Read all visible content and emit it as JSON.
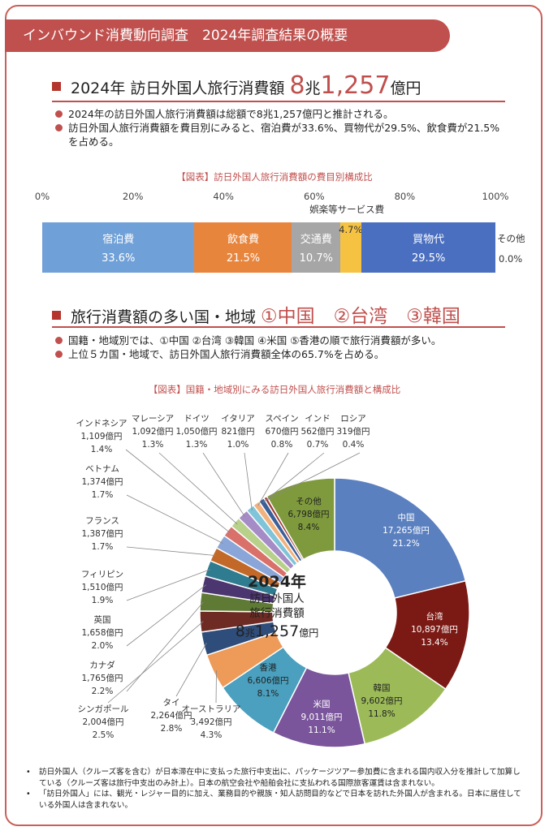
{
  "banner": {
    "title": "インバウンド消費動向調査　2024年調査結果の概要"
  },
  "section1": {
    "heading_prefix": "2024年 訪日外国人旅行消費額 ",
    "heading_big": "8",
    "heading_unit1": "兆",
    "heading_big2": "1,257",
    "heading_unit2": "億円",
    "bullets": [
      "2024年の訪日外国人旅行消費額は総額で8兆1,257億円と推計される。",
      "訪日外国人旅行消費額を費目別にみると、宿泊費が33.6%、買物代が29.5%、飲食費が21.5%を占める。"
    ]
  },
  "bar_chart": {
    "title": "【図表】訪日外国人旅行消費額の費目別構成比",
    "axis_ticks": [
      "0%",
      "20%",
      "40%",
      "60%",
      "80%",
      "100%"
    ]
  },
  "section2": {
    "heading_prefix": "旅行消費額の多い国・地域 ",
    "heading_rank": "①中国　②台湾　③韓国",
    "bullets": [
      "国籍・地域別では、①中国 ②台湾 ③韓国 ④米国 ⑤香港の順で旅行消費額が多い。",
      "上位５カ国・地域で、訪日外国人旅行消費額全体の65.7%を占める。"
    ]
  },
  "pie_chart": {
    "title": "【図表】国籍・地域別にみる訪日外国人旅行消費額と構成比",
    "center_year": "2024年",
    "center_line1": "訪日外国人",
    "center_line2": "旅行消費額",
    "center_big1": "8",
    "center_unit1": "兆",
    "center_big2": "1,257",
    "center_unit2": "億円"
  },
  "chart_data": [
    {
      "type": "bar",
      "title": "【図表】訪日外国人旅行消費額の費目別構成比",
      "orientation": "horizontal-stacked",
      "xlim": [
        0,
        100
      ],
      "series": [
        {
          "name": "宿泊費",
          "value": 33.6,
          "label": "33.6%",
          "color": "#6fa0d8"
        },
        {
          "name": "飲食費",
          "value": 21.5,
          "label": "21.5%",
          "color": "#e8853d"
        },
        {
          "name": "交通費",
          "value": 10.7,
          "label": "10.7%",
          "color": "#a6a6a6"
        },
        {
          "name": "娯楽等サービス費",
          "value": 4.7,
          "label": "4.7%",
          "color": "#f5c242"
        },
        {
          "name": "買物代",
          "value": 29.5,
          "label": "29.5%",
          "color": "#4a6fc0"
        },
        {
          "name": "その他",
          "value": 0.0,
          "label": "0.0%",
          "color": "#cccccc"
        }
      ]
    },
    {
      "type": "pie",
      "title": "【図表】国籍・地域別にみる訪日外国人旅行消費額と構成比",
      "slices": [
        {
          "name": "中国",
          "amount": "17,265億円",
          "pct": "21.2%",
          "value": 21.2,
          "color": "#5b80bf"
        },
        {
          "name": "台湾",
          "amount": "10,897億円",
          "pct": "13.4%",
          "value": 13.4,
          "color": "#7b1a14"
        },
        {
          "name": "韓国",
          "amount": "9,602億円",
          "pct": "11.8%",
          "value": 11.8,
          "color": "#9cbb58"
        },
        {
          "name": "米国",
          "amount": "9,011億円",
          "pct": "11.1%",
          "value": 11.1,
          "color": "#7a559b"
        },
        {
          "name": "香港",
          "amount": "6,606億円",
          "pct": "8.1%",
          "value": 8.1,
          "color": "#4aa0be"
        },
        {
          "name": "オーストラリア",
          "amount": "3,492億円",
          "pct": "4.3%",
          "value": 4.3,
          "color": "#ee9a58"
        },
        {
          "name": "タイ",
          "amount": "2,264億円",
          "pct": "2.8%",
          "value": 2.8,
          "color": "#2f4d7a"
        },
        {
          "name": "シンガポール",
          "amount": "2,004億円",
          "pct": "2.5%",
          "value": 2.5,
          "color": "#6e2b24"
        },
        {
          "name": "カナダ",
          "amount": "1,765億円",
          "pct": "2.2%",
          "value": 2.2,
          "color": "#5e7a34"
        },
        {
          "name": "英国",
          "amount": "1,658億円",
          "pct": "2.0%",
          "value": 2.0,
          "color": "#4c3670"
        },
        {
          "name": "フィリピン",
          "amount": "1,510億円",
          "pct": "1.9%",
          "value": 1.9,
          "color": "#2f7b8f"
        },
        {
          "name": "フランス",
          "amount": "1,387億円",
          "pct": "1.7%",
          "value": 1.7,
          "color": "#c2692a"
        },
        {
          "name": "ベトナム",
          "amount": "1,374億円",
          "pct": "1.7%",
          "value": 1.7,
          "color": "#8aa6d8"
        },
        {
          "name": "インドネシア",
          "amount": "1,109億円",
          "pct": "1.4%",
          "value": 1.4,
          "color": "#d9706a"
        },
        {
          "name": "マレーシア",
          "amount": "1,092億円",
          "pct": "1.3%",
          "value": 1.3,
          "color": "#b7d08a"
        },
        {
          "name": "ドイツ",
          "amount": "1,050億円",
          "pct": "1.3%",
          "value": 1.3,
          "color": "#a58cc6"
        },
        {
          "name": "イタリア",
          "amount": "821億円",
          "pct": "1.0%",
          "value": 1.0,
          "color": "#7fc4d8"
        },
        {
          "name": "スペイン",
          "amount": "670億円",
          "pct": "0.8%",
          "value": 0.8,
          "color": "#f2b27e"
        },
        {
          "name": "インド",
          "amount": "562億円",
          "pct": "0.7%",
          "value": 0.7,
          "color": "#3c5f99"
        },
        {
          "name": "ロシア",
          "amount": "319億円",
          "pct": "0.4%",
          "value": 0.4,
          "color": "#9c3a33"
        },
        {
          "name": "その他",
          "amount": "6,798億円",
          "pct": "8.4%",
          "value": 8.4,
          "color": "#7f9a3d"
        }
      ]
    }
  ],
  "notes": [
    "訪日外国人（クルーズ客を含む）が日本滞在中に支払った旅行中支出に、パッケージツアー参加費に含まれる国内収入分を推計して加算している（クルーズ客は旅行中支出のみ計上）。日本の航空会社や船舶会社に支払われる国際旅客運賃は含まれない。",
    "「訪日外国人」には、観光・レジャー目的に加え、業務目的や親族・知人訪問目的などで日本を訪れた外国人が含まれる。日本に居住している外国人は含まれない。"
  ]
}
